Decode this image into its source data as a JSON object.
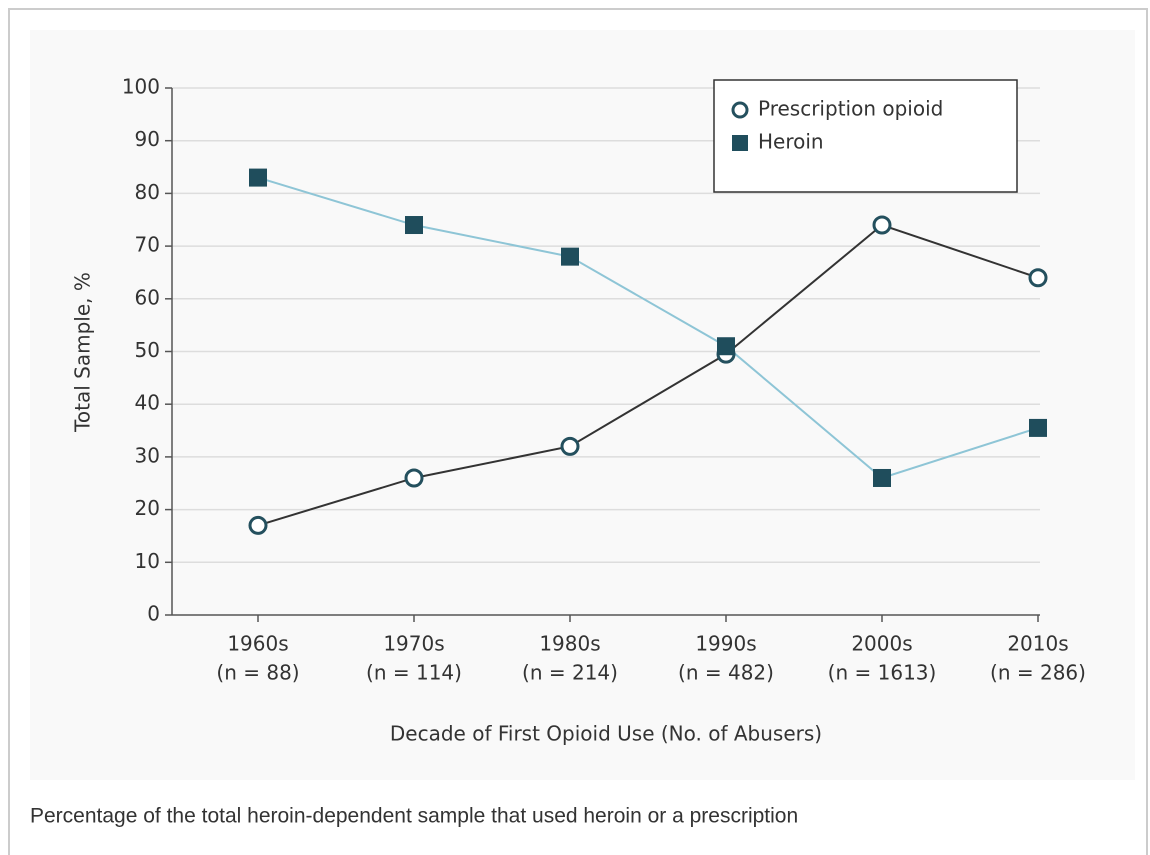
{
  "chart_data": {
    "type": "line",
    "x_label": "Decade of First Opioid Use (No. of Abusers)",
    "y_label": "Total Sample, %",
    "categories": [
      "1960s",
      "1970s",
      "1980s",
      "1990s",
      "2000s",
      "2010s"
    ],
    "category_sublabels": [
      "(n = 88)",
      "(n = 114)",
      "(n = 214)",
      "(n = 482)",
      "(n = 1613)",
      "(n = 286)"
    ],
    "series": [
      {
        "name": "Prescription opioid",
        "color": "#333333",
        "marker": "circle",
        "marker_color": "#24505e",
        "values": [
          17,
          26,
          32,
          49.5,
          74,
          64
        ]
      },
      {
        "name": "Heroin",
        "color": "#8ec5d6",
        "marker": "square",
        "marker_color": "#1f4d5c",
        "values": [
          83,
          74,
          68,
          51,
          26,
          35.5
        ]
      }
    ],
    "ylim": [
      0,
      100
    ],
    "yticks": [
      0,
      10,
      20,
      30,
      40,
      50,
      60,
      70,
      80,
      90,
      100
    ],
    "grid": true,
    "legend": "top-right"
  },
  "caption": "Percentage of the total heroin-dependent sample that used heroin or a prescription"
}
